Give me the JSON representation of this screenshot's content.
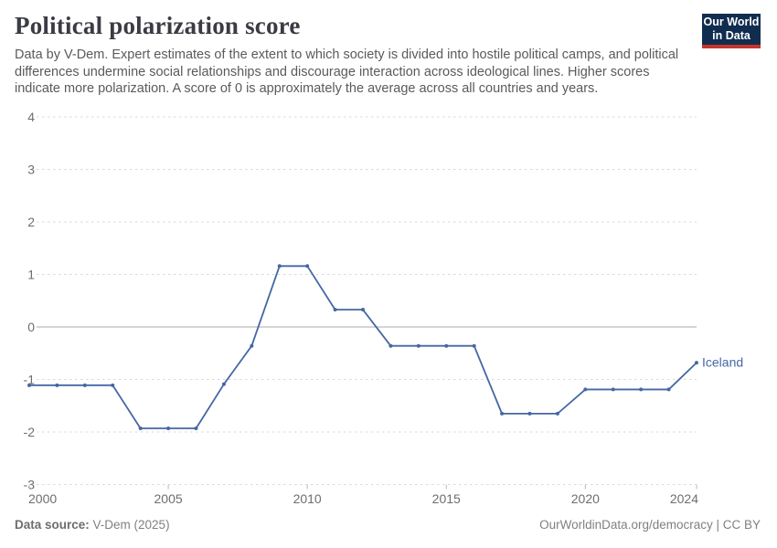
{
  "header": {
    "title": "Political polarization score",
    "subtitle": "Data by V-Dem. Expert estimates of the extent to which society is divided into hostile political camps, and political differences undermine social relationships and discourage interaction across ideological lines. Higher scores indicate more polarization. A score of 0 is approximately the average across all countries and years.",
    "logo": {
      "line1": "Our World",
      "line2": "in Data"
    }
  },
  "chart_data": {
    "type": "line",
    "title": "Political polarization score",
    "entity": "Iceland",
    "x": [
      2000,
      2001,
      2002,
      2003,
      2004,
      2005,
      2006,
      2007,
      2008,
      2009,
      2010,
      2011,
      2012,
      2013,
      2014,
      2015,
      2016,
      2017,
      2018,
      2019,
      2020,
      2021,
      2022,
      2023,
      2024
    ],
    "series": [
      {
        "name": "Iceland",
        "values": [
          -1.11,
          -1.11,
          -1.11,
          -1.11,
          -1.93,
          -1.93,
          -1.93,
          -1.09,
          -0.36,
          1.16,
          1.16,
          0.33,
          0.33,
          -0.36,
          -0.36,
          -0.36,
          -0.36,
          -1.65,
          -1.65,
          -1.65,
          -1.19,
          -1.19,
          -1.19,
          -1.19,
          -0.68
        ]
      }
    ],
    "xlabel": "",
    "ylabel": "",
    "xlim": [
      2000,
      2024
    ],
    "ylim": [
      -3,
      4
    ],
    "y_ticks": [
      4,
      3,
      2,
      1,
      0,
      -1,
      -2,
      -3
    ],
    "x_ticks": [
      2000,
      2005,
      2010,
      2015,
      2020,
      2024
    ],
    "grid": "horizontal dashed gridlines, solid zero line",
    "legend": "end-of-line entity label",
    "colors": {
      "line": "#4567a3",
      "zero_line": "#a8a8a8",
      "gridline": "#d9d9d9",
      "tick_label": "#6e6e6e",
      "axis_tick": "#b8b8b8"
    }
  },
  "footer": {
    "source_label": "Data source:",
    "source_value": " V-Dem (2025)",
    "right_text": "OurWorldinData.org/democracy | CC BY"
  }
}
